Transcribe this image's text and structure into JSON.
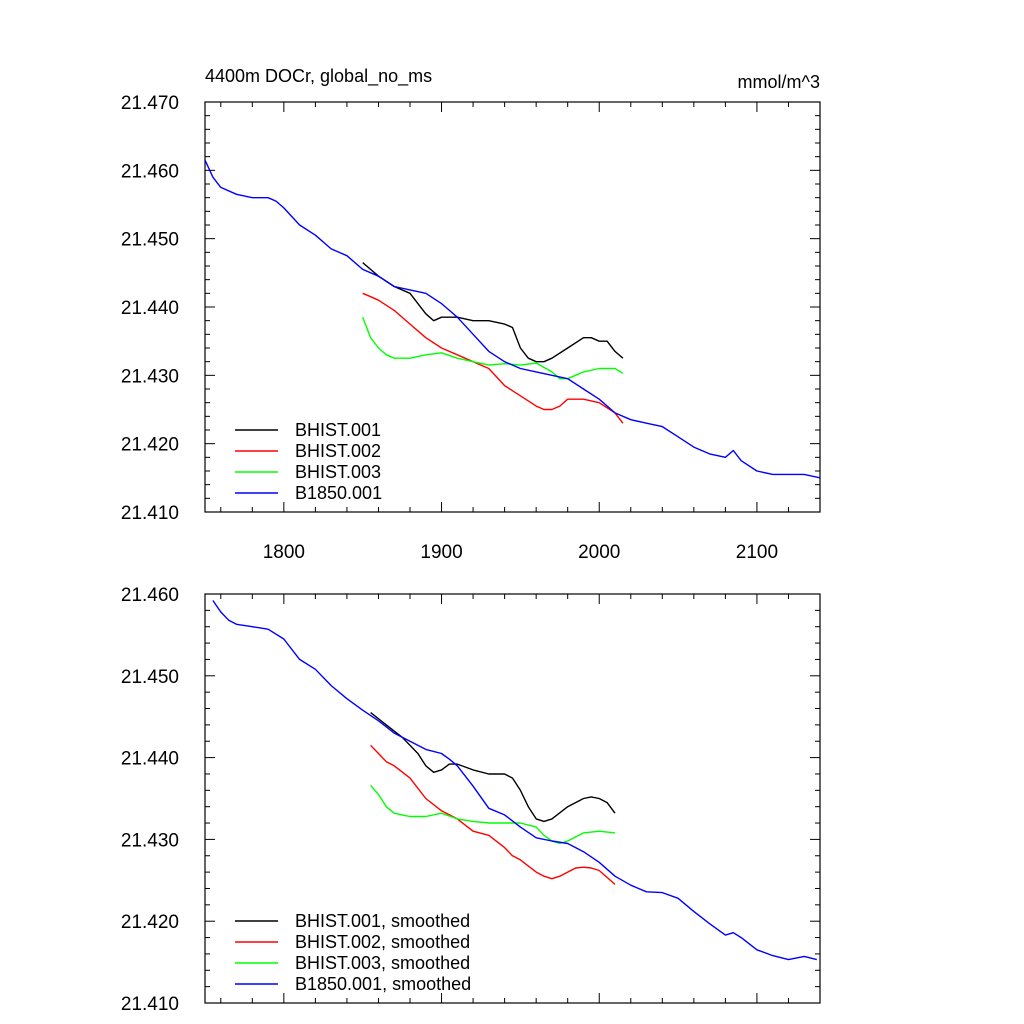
{
  "chart_data": [
    {
      "type": "line",
      "title": "4400m DOCr, global_no_ms",
      "units": "mmol/m^3",
      "xlim": [
        1750,
        2140
      ],
      "ylim": [
        21.41,
        21.47
      ],
      "x_ticks": [
        1800,
        1900,
        2000,
        2100
      ],
      "x_tick_labels": [
        "1800",
        "1900",
        "2000",
        "2100"
      ],
      "y_ticks": [
        21.41,
        21.42,
        21.43,
        21.44,
        21.45,
        21.46,
        21.47
      ],
      "y_tick_labels": [
        "21.410",
        "21.420",
        "21.430",
        "21.440",
        "21.450",
        "21.460",
        "21.470"
      ],
      "legend_position": "bottom-left",
      "series": [
        {
          "name": "BHIST.001",
          "color": "#000000",
          "x": [
            1850,
            1860,
            1870,
            1880,
            1890,
            1895,
            1900,
            1910,
            1920,
            1930,
            1940,
            1945,
            1950,
            1955,
            1960,
            1965,
            1970,
            1980,
            1990,
            1995,
            2000,
            2005,
            2010,
            2015
          ],
          "y": [
            21.4465,
            21.4445,
            21.443,
            21.442,
            21.439,
            21.438,
            21.4385,
            21.4385,
            21.438,
            21.438,
            21.4375,
            21.437,
            21.434,
            21.4325,
            21.432,
            21.432,
            21.4325,
            21.434,
            21.4355,
            21.4355,
            21.435,
            21.435,
            21.4335,
            21.4325
          ]
        },
        {
          "name": "BHIST.002",
          "color": "#ff0000",
          "x": [
            1850,
            1855,
            1860,
            1870,
            1880,
            1890,
            1900,
            1910,
            1920,
            1930,
            1940,
            1950,
            1960,
            1965,
            1970,
            1975,
            1980,
            1990,
            2000,
            2010,
            2015
          ],
          "y": [
            21.442,
            21.4415,
            21.441,
            21.4395,
            21.4375,
            21.4355,
            21.434,
            21.433,
            21.432,
            21.431,
            21.4285,
            21.427,
            21.4255,
            21.425,
            21.425,
            21.4255,
            21.4265,
            21.4265,
            21.426,
            21.4245,
            21.423
          ]
        },
        {
          "name": "BHIST.003",
          "color": "#00ff00",
          "x": [
            1850,
            1855,
            1860,
            1865,
            1870,
            1880,
            1890,
            1900,
            1910,
            1920,
            1930,
            1940,
            1950,
            1960,
            1970,
            1975,
            1980,
            1990,
            2000,
            2010,
            2015
          ],
          "y": [
            21.4385,
            21.4355,
            21.434,
            21.433,
            21.4325,
            21.4325,
            21.433,
            21.4333,
            21.4325,
            21.432,
            21.4315,
            21.4317,
            21.4315,
            21.4318,
            21.4305,
            21.4295,
            21.4295,
            21.4305,
            21.431,
            21.431,
            21.4303
          ]
        },
        {
          "name": "B1850.001",
          "color": "#0000ff",
          "x": [
            1750,
            1755,
            1760,
            1770,
            1780,
            1790,
            1795,
            1800,
            1810,
            1820,
            1830,
            1840,
            1850,
            1860,
            1870,
            1880,
            1890,
            1900,
            1905,
            1910,
            1920,
            1930,
            1940,
            1950,
            1960,
            1970,
            1980,
            1990,
            2000,
            2010,
            2020,
            2030,
            2040,
            2050,
            2060,
            2070,
            2080,
            2085,
            2090,
            2100,
            2110,
            2120,
            2130,
            2140
          ],
          "y": [
            21.4615,
            21.459,
            21.4575,
            21.4565,
            21.456,
            21.456,
            21.4555,
            21.4545,
            21.452,
            21.4505,
            21.4485,
            21.4475,
            21.4455,
            21.4445,
            21.443,
            21.4425,
            21.442,
            21.4405,
            21.4395,
            21.4385,
            21.436,
            21.4335,
            21.432,
            21.431,
            21.4305,
            21.43,
            21.4295,
            21.428,
            21.4265,
            21.4245,
            21.4235,
            21.423,
            21.4225,
            21.421,
            21.4195,
            21.4185,
            21.418,
            21.419,
            21.4175,
            21.416,
            21.4155,
            21.4155,
            21.4155,
            21.415
          ]
        }
      ]
    },
    {
      "type": "line",
      "xlim": [
        1750,
        2140
      ],
      "ylim": [
        21.41,
        21.46
      ],
      "x_ticks": [
        1800,
        1900,
        2000,
        2100
      ],
      "y_ticks": [
        21.41,
        21.42,
        21.43,
        21.44,
        21.45,
        21.46
      ],
      "y_tick_labels": [
        "21.410",
        "21.420",
        "21.430",
        "21.440",
        "21.450",
        "21.460"
      ],
      "legend_position": "bottom-left",
      "series": [
        {
          "name": "BHIST.001, smoothed",
          "color": "#000000",
          "x": [
            1855,
            1865,
            1875,
            1885,
            1890,
            1895,
            1900,
            1905,
            1910,
            1920,
            1930,
            1940,
            1945,
            1950,
            1955,
            1960,
            1965,
            1970,
            1980,
            1990,
            1995,
            2000,
            2005,
            2010
          ],
          "y": [
            21.4455,
            21.444,
            21.4425,
            21.4405,
            21.439,
            21.4382,
            21.4385,
            21.4392,
            21.4392,
            21.4385,
            21.438,
            21.438,
            21.4375,
            21.436,
            21.434,
            21.4325,
            21.4322,
            21.4325,
            21.434,
            21.435,
            21.4352,
            21.435,
            21.4345,
            21.4332
          ]
        },
        {
          "name": "BHIST.002, smoothed",
          "color": "#ff0000",
          "x": [
            1855,
            1860,
            1865,
            1870,
            1880,
            1890,
            1900,
            1910,
            1920,
            1930,
            1940,
            1945,
            1950,
            1960,
            1965,
            1970,
            1975,
            1980,
            1985,
            1990,
            1995,
            2000,
            2010
          ],
          "y": [
            21.4415,
            21.4405,
            21.4395,
            21.439,
            21.4375,
            21.435,
            21.4335,
            21.4325,
            21.431,
            21.4305,
            21.429,
            21.428,
            21.4275,
            21.426,
            21.4255,
            21.4252,
            21.4255,
            21.426,
            21.4265,
            21.4266,
            21.4265,
            21.4262,
            21.4245
          ]
        },
        {
          "name": "BHIST.003, smoothed",
          "color": "#00ff00",
          "x": [
            1855,
            1860,
            1865,
            1870,
            1875,
            1880,
            1890,
            1900,
            1910,
            1920,
            1930,
            1940,
            1950,
            1960,
            1965,
            1970,
            1975,
            1980,
            1990,
            2000,
            2010
          ],
          "y": [
            21.4366,
            21.4355,
            21.434,
            21.4332,
            21.433,
            21.4328,
            21.4328,
            21.4332,
            21.4325,
            21.4322,
            21.432,
            21.432,
            21.432,
            21.4315,
            21.4305,
            21.4298,
            21.4295,
            21.4298,
            21.4308,
            21.431,
            21.4308
          ]
        },
        {
          "name": "B1850.001, smoothed",
          "color": "#0000ff",
          "x": [
            1755,
            1760,
            1765,
            1770,
            1780,
            1790,
            1800,
            1810,
            1820,
            1830,
            1840,
            1850,
            1860,
            1870,
            1880,
            1890,
            1900,
            1905,
            1910,
            1920,
            1930,
            1940,
            1950,
            1960,
            1970,
            1980,
            1990,
            2000,
            2010,
            2020,
            2030,
            2040,
            2050,
            2060,
            2070,
            2080,
            2085,
            2090,
            2100,
            2110,
            2120,
            2130,
            2138
          ],
          "y": [
            21.4592,
            21.4578,
            21.4568,
            21.4563,
            21.456,
            21.4557,
            21.4545,
            21.452,
            21.4508,
            21.4488,
            21.4472,
            21.4458,
            21.4445,
            21.443,
            21.442,
            21.441,
            21.4405,
            21.4398,
            21.439,
            21.4365,
            21.4338,
            21.433,
            21.4315,
            21.4302,
            21.4298,
            21.4295,
            21.4285,
            21.4272,
            21.4255,
            21.4244,
            21.4236,
            21.4235,
            21.4228,
            21.4212,
            21.4197,
            21.4183,
            21.4186,
            21.418,
            21.4165,
            21.4158,
            21.4153,
            21.4157,
            21.4153
          ]
        }
      ]
    }
  ]
}
